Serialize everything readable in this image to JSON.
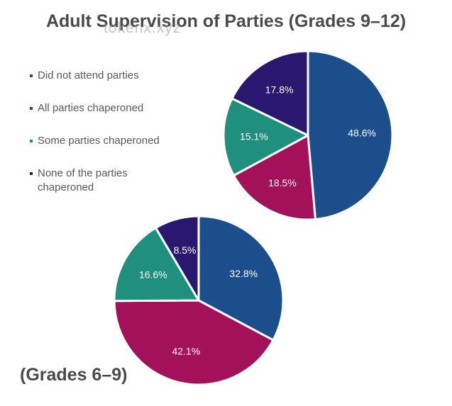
{
  "title": "Adult Supervision of Parties (Grades 9–12)",
  "watermark": "tokenx.xyz",
  "subtitle": "(Grades 6–9)",
  "legend": [
    {
      "label": "Did not attend parties",
      "color": "#1c4e8c"
    },
    {
      "label": "All parties chaperoned",
      "color": "#a3115a"
    },
    {
      "label": "Some parties chaperoned",
      "color": "#1f8f7e"
    },
    {
      "label": "None of the parties chaperoned",
      "color": "#2a1770"
    }
  ],
  "chart_data": [
    {
      "type": "pie",
      "title": "Adult Supervision of Parties (Grades 9–12)",
      "categories": [
        "Did not attend parties",
        "All parties chaperoned",
        "Some parties chaperoned",
        "None of the parties chaperoned"
      ],
      "values": [
        48.6,
        18.5,
        15.1,
        17.8
      ],
      "labels": [
        "48.6%",
        "18.5%",
        "15.1%",
        "17.8%"
      ],
      "colors": [
        "#1c4e8c",
        "#a3115a",
        "#1f8f7e",
        "#2a1770"
      ]
    },
    {
      "type": "pie",
      "title": "(Grades 6–9)",
      "categories": [
        "Did not attend parties",
        "All parties chaperoned",
        "Some parties chaperoned",
        "None of the parties chaperoned"
      ],
      "values": [
        32.8,
        42.1,
        16.6,
        8.5
      ],
      "labels": [
        "32.8%",
        "42.1%",
        "16.6%",
        "8.5%"
      ],
      "colors": [
        "#1c4e8c",
        "#a3115a",
        "#1f8f7e",
        "#2a1770"
      ]
    }
  ]
}
